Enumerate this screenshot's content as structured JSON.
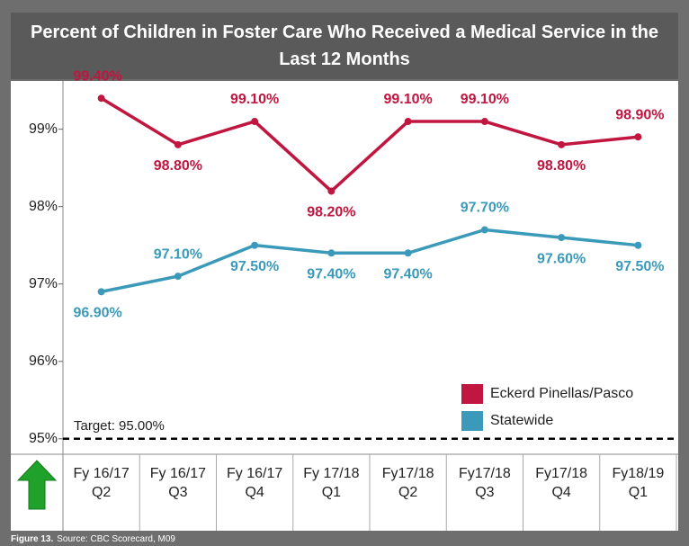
{
  "chart_data": {
    "type": "line",
    "title": "Percent of Children in Foster Care Who Received a Medical Service in the Last 12 Months",
    "categories": [
      "Fy 16/17 Q2",
      "Fy 16/17 Q3",
      "Fy 16/17 Q4",
      "Fy 17/18 Q1",
      "Fy17/18 Q2",
      "Fy17/18 Q3",
      "Fy17/18 Q4",
      "Fy18/19 Q1"
    ],
    "series": [
      {
        "name": "Eckerd Pinellas/Pasco",
        "color": "#c0163f",
        "values": [
          99.4,
          98.8,
          99.1,
          98.2,
          99.1,
          99.1,
          98.8,
          98.9
        ],
        "value_labels": [
          "99.40%",
          "98.80%",
          "99.10%",
          "98.20%",
          "99.10%",
          "99.10%",
          "98.80%",
          "98.90%"
        ]
      },
      {
        "name": "Statewide",
        "color": "#3b9ab9",
        "values": [
          96.9,
          97.1,
          97.5,
          97.4,
          97.4,
          97.7,
          97.6,
          97.5
        ],
        "value_labels": [
          "96.90%",
          "97.10%",
          "97.50%",
          "97.40%",
          "97.40%",
          "97.70%",
          "97.60%",
          "97.50%"
        ]
      }
    ],
    "ylim": [
      94.8,
      99.6
    ],
    "yticks": [
      {
        "value": 95,
        "label": "95%"
      },
      {
        "value": 96,
        "label": "96%"
      },
      {
        "value": 97,
        "label": "97%"
      },
      {
        "value": 98,
        "label": "98%"
      },
      {
        "value": 99,
        "label": "99%"
      }
    ],
    "target": {
      "value": 95,
      "label": "Target: 95.00%"
    },
    "legend": "lower right",
    "footer": {
      "figure": "Figure 13.",
      "source": "Source: CBC Scorecard, M09"
    }
  }
}
